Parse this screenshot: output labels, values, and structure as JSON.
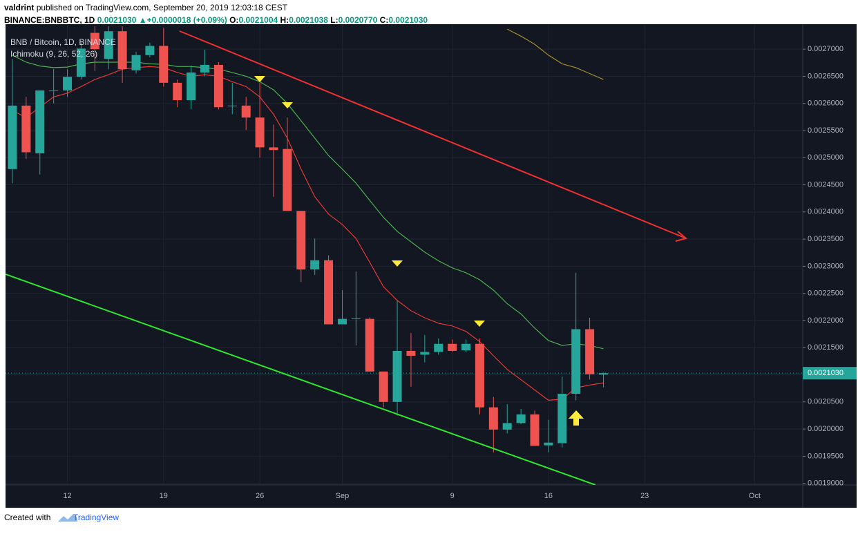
{
  "header": {
    "author": "valdrint",
    "published": "published on TradingView.com, September 20, 2019 12:03:18 CEST",
    "symbol": "BINANCE:BNBBTC, 1D",
    "price": "0.0021030",
    "change_arrow": "▲",
    "change": "+0.0000018 (+0.09%)",
    "o_label": "O:",
    "o": "0.0021004",
    "h_label": "H:",
    "h": "0.0021038",
    "l_label": "L:",
    "l": "0.0020770",
    "c_label": "C:",
    "c": "0.0021030"
  },
  "footer": {
    "created": "Created with",
    "brand": "TradingView"
  },
  "chart_data": {
    "type": "candlestick",
    "title": "BNB / Bitcoin, 1D, BINANCE",
    "subtitle": "Ichimoku (9, 26, 52, 26)",
    "up_color": "#26a69a",
    "down_color": "#ef5350",
    "grid": true,
    "categories": [
      null,
      null,
      null,
      null,
      "12",
      null,
      null,
      null,
      null,
      null,
      null,
      "19",
      null,
      null,
      null,
      null,
      null,
      null,
      "26",
      null,
      null,
      null,
      null,
      null,
      "Sep",
      null,
      null,
      null,
      null,
      null,
      null,
      null,
      "9",
      null,
      null,
      null,
      null,
      null,
      null,
      "16",
      null,
      null,
      null,
      null,
      null,
      null,
      "23",
      null,
      null,
      null,
      null,
      null,
      null,
      null,
      "Oct",
      null,
      null,
      null
    ],
    "open": [
      0.002479,
      0.002596,
      0.002508,
      0.002623,
      0.002624,
      0.002649,
      0.00273,
      0.002682,
      0.002733,
      0.002661,
      0.002689,
      0.002706,
      0.002638,
      0.002606,
      0.002657,
      0.002671,
      0.002595,
      0.002596,
      0.002574,
      0.002519,
      0.002516,
      0.002402,
      0.002294,
      0.002311,
      0.002193,
      0.002203,
      0.002203,
      0.002106,
      0.00205,
      0.002144,
      0.002137,
      0.002142,
      0.002157,
      0.002145,
      0.002157,
      0.00204,
      0.001999,
      0.002011,
      0.002027,
      0.00197,
      0.001974,
      0.002065,
      0.002184,
      0.0021004,
      null,
      null,
      null,
      null,
      null,
      null,
      null,
      null,
      null,
      null,
      null,
      null,
      null,
      null
    ],
    "high": [
      0.002682,
      0.002612,
      0.002624,
      0.002663,
      0.002663,
      0.002714,
      0.002742,
      0.002742,
      0.002742,
      0.002695,
      0.002712,
      0.002739,
      0.002644,
      0.00267,
      0.002699,
      0.002676,
      0.002638,
      0.002612,
      0.002638,
      0.002561,
      0.002574,
      0.002402,
      0.002351,
      0.00232,
      0.002256,
      0.00229,
      0.002206,
      0.002106,
      0.002237,
      0.002177,
      0.002173,
      0.002167,
      0.002165,
      0.002165,
      0.002167,
      0.002059,
      0.002046,
      0.002037,
      0.002034,
      0.002017,
      0.002097,
      0.002288,
      0.002205,
      0.0021038,
      null,
      null,
      null,
      null,
      null,
      null,
      null,
      null,
      null,
      null,
      null,
      null,
      null,
      null
    ],
    "low": [
      0.002453,
      0.002498,
      0.002469,
      0.0026,
      0.002612,
      0.002644,
      0.00266,
      0.002663,
      0.002638,
      0.002655,
      0.002685,
      0.002631,
      0.002593,
      0.002589,
      0.00265,
      0.002589,
      0.00258,
      0.002551,
      0.0025,
      0.002428,
      0.002402,
      0.002271,
      0.002284,
      0.002193,
      0.002193,
      0.002154,
      0.002106,
      0.00204,
      0.002025,
      0.002078,
      0.002123,
      0.002137,
      0.002142,
      0.002142,
      0.002027,
      0.001957,
      0.001992,
      0.002009,
      0.001969,
      0.001957,
      0.001966,
      0.002053,
      0.002091,
      0.002077,
      null,
      null,
      null,
      null,
      null,
      null,
      null,
      null,
      null,
      null,
      null,
      null,
      null,
      null
    ],
    "close": [
      0.002596,
      0.00251,
      0.002624,
      0.002624,
      0.002649,
      0.002701,
      0.0027,
      0.002733,
      0.002663,
      0.002689,
      0.002706,
      0.002638,
      0.002606,
      0.002657,
      0.002671,
      0.002593,
      0.002596,
      0.002574,
      0.002519,
      0.002514,
      0.002402,
      0.002294,
      0.002311,
      0.002193,
      0.002203,
      0.002204,
      0.002106,
      0.00205,
      0.002144,
      0.002135,
      0.002142,
      0.002157,
      0.002144,
      0.002157,
      0.00204,
      0.001999,
      0.002011,
      0.002027,
      0.001969,
      0.001975,
      0.002065,
      0.002184,
      0.002101,
      0.002103,
      null,
      null,
      null,
      null,
      null,
      null,
      null,
      null,
      null,
      null,
      null,
      null,
      null,
      null
    ],
    "overlays": [
      {
        "color": "#e53935",
        "values": [
          0.002587,
          0.002574,
          0.002593,
          0.002612,
          0.002619,
          0.002631,
          0.002644,
          0.002653,
          0.002663,
          0.002666,
          0.002668,
          0.002666,
          0.002657,
          0.00265,
          0.002653,
          0.00265,
          0.00264,
          0.002631,
          0.002612,
          0.00258,
          0.002536,
          0.002479,
          0.002428,
          0.002396,
          0.002377,
          0.002351,
          0.002307,
          0.002262,
          0.002237,
          0.002218,
          0.002205,
          0.002195,
          0.00219,
          0.00218,
          0.002161,
          0.002135,
          0.00211,
          0.002091,
          0.002072,
          0.002053,
          0.002055,
          0.002076,
          0.002081,
          0.002085,
          null,
          null,
          null,
          null,
          null,
          null,
          null,
          null,
          null,
          null,
          null,
          null,
          null,
          null
        ]
      },
      {
        "color": "#4caf50",
        "values": [
          0.002689,
          0.002676,
          0.002669,
          0.002666,
          0.002667,
          0.002673,
          0.002676,
          0.002676,
          0.002676,
          0.002676,
          0.002673,
          0.002672,
          0.002668,
          0.002668,
          0.002666,
          0.002663,
          0.002657,
          0.00265,
          0.00264,
          0.002625,
          0.0026,
          0.002568,
          0.002536,
          0.002504,
          0.002479,
          0.002453,
          0.002421,
          0.00239,
          0.002364,
          0.002345,
          0.002326,
          0.00231,
          0.002297,
          0.002288,
          0.002275,
          0.002256,
          0.002231,
          0.002212,
          0.002186,
          0.002163,
          0.002154,
          0.002157,
          0.002154,
          0.002148,
          null,
          null,
          null,
          null,
          null,
          null,
          null,
          null,
          null,
          null,
          null,
          null,
          null,
          null
        ]
      },
      {
        "color": "#a58f2e",
        "values": [
          null,
          null,
          null,
          null,
          null,
          null,
          null,
          null,
          null,
          null,
          null,
          null,
          null,
          null,
          null,
          null,
          null,
          null,
          null,
          null,
          null,
          null,
          null,
          null,
          null,
          null,
          null,
          null,
          null,
          null,
          null,
          null,
          null,
          null,
          null,
          null,
          0.002737,
          0.002724,
          0.002709,
          0.002689,
          0.002673,
          0.002666,
          0.002655,
          0.002644,
          null,
          null,
          null,
          null,
          null,
          null,
          null,
          null,
          null,
          null,
          null,
          null,
          null,
          null
        ]
      }
    ],
    "last_price": {
      "value": 0.002103,
      "label": "0.0021030"
    },
    "ylim": [
      0.001897,
      0.002746
    ],
    "yticks": [
      {
        "value": 0.0019,
        "label": "0.0019000"
      },
      {
        "value": 0.00195,
        "label": "0.0019500"
      },
      {
        "value": 0.002,
        "label": "0.0020000"
      },
      {
        "value": 0.00205,
        "label": "0.0020500"
      },
      {
        "value": 0.0021,
        "label": "0.0021000"
      },
      {
        "value": 0.00215,
        "label": "0.0021500"
      },
      {
        "value": 0.0022,
        "label": "0.0022000"
      },
      {
        "value": 0.00225,
        "label": "0.0022500"
      },
      {
        "value": 0.0023,
        "label": "0.0023000"
      },
      {
        "value": 0.00235,
        "label": "0.0023500"
      },
      {
        "value": 0.0024,
        "label": "0.0024000"
      },
      {
        "value": 0.00245,
        "label": "0.0024500"
      },
      {
        "value": 0.0025,
        "label": "0.0025000"
      },
      {
        "value": 0.00255,
        "label": "0.0025500"
      },
      {
        "value": 0.0026,
        "label": "0.0026000"
      },
      {
        "value": 0.00265,
        "label": "0.0026500"
      },
      {
        "value": 0.0027,
        "label": "0.0027000"
      }
    ]
  }
}
